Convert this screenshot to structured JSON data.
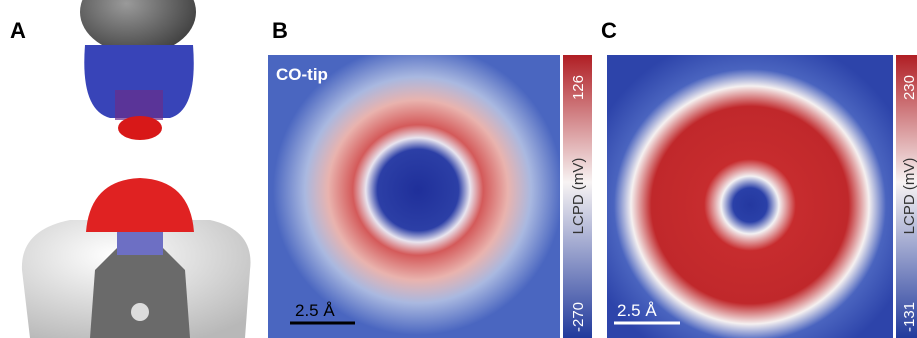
{
  "panels": [
    {
      "label": "A"
    },
    {
      "label": "B",
      "tip_label": "CO-tip",
      "scale_bar": "2.5 Å",
      "colorbar": {
        "title": "LCPD (mV)",
        "max": 126,
        "min": -270
      }
    },
    {
      "label": "C",
      "scale_bar": "2.5 Å",
      "colorbar": {
        "title": "LCPD (mV)",
        "max": 230,
        "min": -131
      }
    }
  ]
}
